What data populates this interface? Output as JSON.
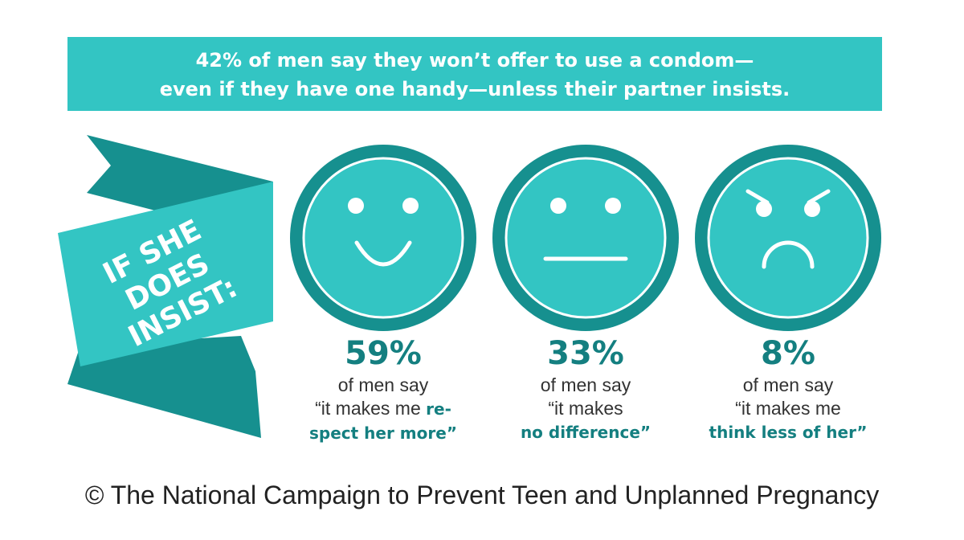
{
  "banner": {
    "line1": "42% of men say they won’t offer to use a condom—",
    "line2": "even if they have one handy—unless their partner insists."
  },
  "ribbon": {
    "line1": "IF SHE",
    "line2": "DOES",
    "line3": "INSIST:"
  },
  "stats": [
    {
      "percent": "59%",
      "line1": "of men say",
      "line2_plain": "“it makes me ",
      "line2_hl": "re-",
      "line3_hl": "spect her more",
      "line3_plain": "”"
    },
    {
      "percent": "33%",
      "line1": "of men say",
      "line2_plain": "“it makes",
      "line3_hl": "no difference",
      "line3_plain": "”"
    },
    {
      "percent": "8%",
      "line1": "of men say",
      "line2_plain": "“it makes me",
      "line3_hl": "think less of her",
      "line3_plain": "”"
    }
  ],
  "footer": "© The National Campaign to Prevent Teen and Unplanned Pregnancy",
  "colors": {
    "teal_light": "#33c5c3",
    "teal_dark": "#16908f",
    "text_teal": "#147f80"
  }
}
